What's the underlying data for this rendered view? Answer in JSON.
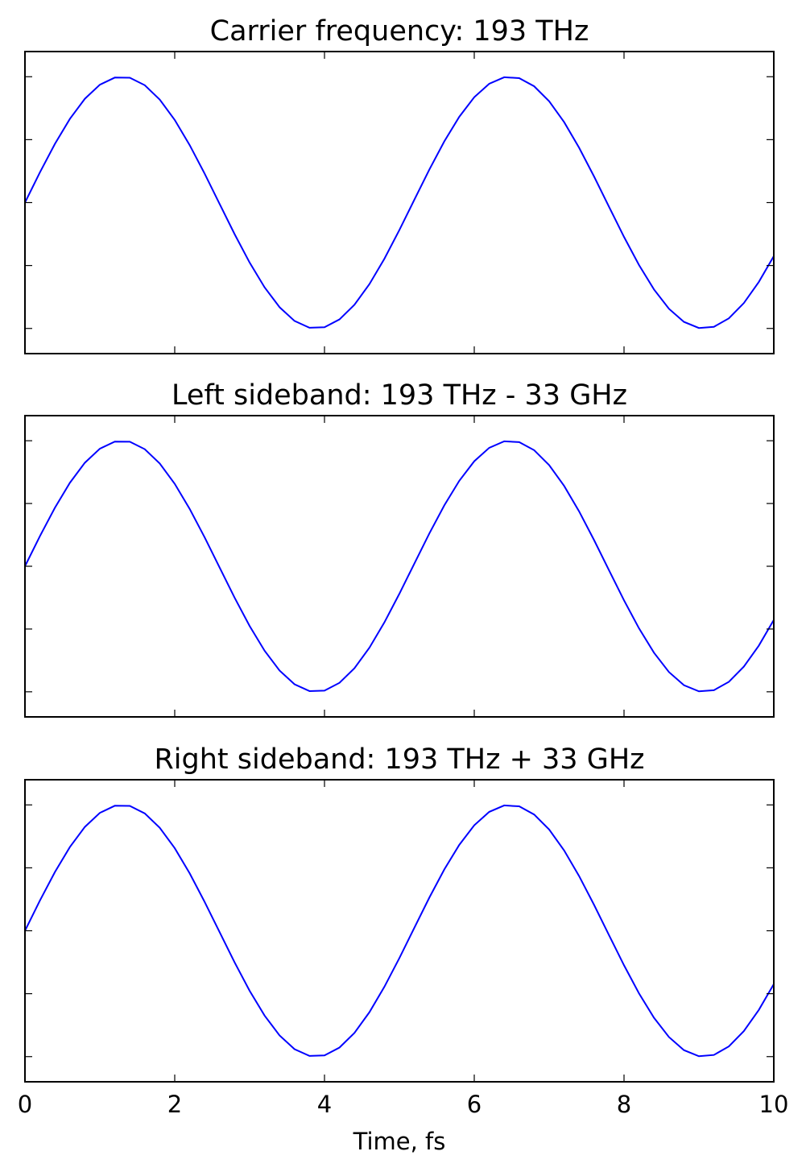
{
  "chart_data": [
    {
      "type": "line",
      "title": "Carrier frequency: 193 THz",
      "frequency_thz": 193,
      "xlim": [
        0,
        10
      ],
      "ylim": [
        -1.2,
        1.2
      ],
      "yticks": [
        -1.0,
        -0.5,
        0.0,
        0.5,
        1.0
      ],
      "xticks": [
        0,
        2,
        4,
        6,
        8,
        10
      ],
      "show_x_tick_labels": false,
      "show_y_tick_labels": false,
      "xlabel": "",
      "series": [
        {
          "x_start": 0,
          "x_end": 10,
          "x_step": 0.2,
          "function": "sin(2*pi*193THz*t)"
        }
      ],
      "color": "#0000ff"
    },
    {
      "type": "line",
      "title": "Left sideband: 193 THz - 33 GHz",
      "frequency_thz": 192.967,
      "xlim": [
        0,
        10
      ],
      "ylim": [
        -1.2,
        1.2
      ],
      "yticks": [
        -1.0,
        -0.5,
        0.0,
        0.5,
        1.0
      ],
      "xticks": [
        0,
        2,
        4,
        6,
        8,
        10
      ],
      "show_x_tick_labels": false,
      "show_y_tick_labels": false,
      "xlabel": "",
      "series": [
        {
          "x_start": 0,
          "x_end": 10,
          "x_step": 0.2,
          "function": "sin(2*pi*(193THz-33GHz)*t)"
        }
      ],
      "color": "#0000ff"
    },
    {
      "type": "line",
      "title": "Right sideband: 193 THz + 33 GHz",
      "frequency_thz": 193.033,
      "xlim": [
        0,
        10
      ],
      "ylim": [
        -1.2,
        1.2
      ],
      "yticks": [
        -1.0,
        -0.5,
        0.0,
        0.5,
        1.0
      ],
      "xticks": [
        0,
        2,
        4,
        6,
        8,
        10
      ],
      "show_x_tick_labels": true,
      "show_y_tick_labels": false,
      "xlabel": "Time, fs",
      "series": [
        {
          "x_start": 0,
          "x_end": 10,
          "x_step": 0.2,
          "function": "sin(2*pi*(193THz+33GHz)*t)"
        }
      ],
      "color": "#0000ff"
    }
  ]
}
